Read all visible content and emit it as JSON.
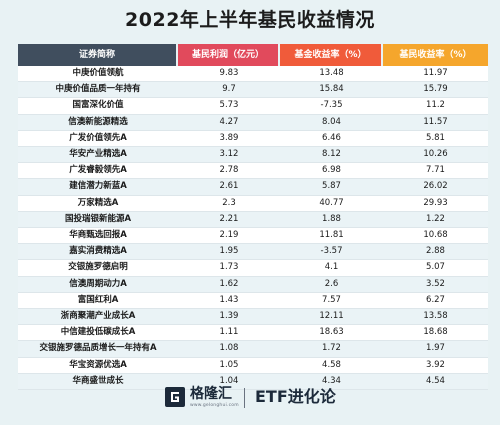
{
  "title": "2022年上半年基民收益情况",
  "columns": [
    "证券简称",
    "基民利润（亿元）",
    "基金收益率（%）",
    "基民收益率（%）"
  ],
  "rows": [
    {
      "name": "中庚价值领航",
      "profit": "9.83",
      "fund_return": "13.48",
      "investor_return": "11.97"
    },
    {
      "name": "中庚价值品质一年持有",
      "profit": "9.7",
      "fund_return": "15.84",
      "investor_return": "15.79"
    },
    {
      "name": "国富深化价值",
      "profit": "5.73",
      "fund_return": "-7.35",
      "investor_return": "11.2"
    },
    {
      "name": "信澳新能源精选",
      "profit": "4.27",
      "fund_return": "8.04",
      "investor_return": "11.57"
    },
    {
      "name": "广发价值领先A",
      "profit": "3.89",
      "fund_return": "6.46",
      "investor_return": "5.81"
    },
    {
      "name": "华安产业精选A",
      "profit": "3.12",
      "fund_return": "8.12",
      "investor_return": "10.26"
    },
    {
      "name": "广发睿毅领先A",
      "profit": "2.78",
      "fund_return": "6.98",
      "investor_return": "7.71"
    },
    {
      "name": "建信潜力新蓝A",
      "profit": "2.61",
      "fund_return": "5.87",
      "investor_return": "26.02"
    },
    {
      "name": "万家精选A",
      "profit": "2.3",
      "fund_return": "40.77",
      "investor_return": "29.93"
    },
    {
      "name": "国投瑞银新能源A",
      "profit": "2.21",
      "fund_return": "1.88",
      "investor_return": "1.22"
    },
    {
      "name": "华商甄选回报A",
      "profit": "2.19",
      "fund_return": "11.81",
      "investor_return": "10.68"
    },
    {
      "name": "嘉实消费精选A",
      "profit": "1.95",
      "fund_return": "-3.57",
      "investor_return": "2.88"
    },
    {
      "name": "交银施罗德启明",
      "profit": "1.73",
      "fund_return": "4.1",
      "investor_return": "5.07"
    },
    {
      "name": "信澳周期动力A",
      "profit": "1.62",
      "fund_return": "2.6",
      "investor_return": "3.52"
    },
    {
      "name": "富国红利A",
      "profit": "1.43",
      "fund_return": "7.57",
      "investor_return": "6.27"
    },
    {
      "name": "浙商聚潮产业成长A",
      "profit": "1.39",
      "fund_return": "12.11",
      "investor_return": "13.58"
    },
    {
      "name": "中信建投低碳成长A",
      "profit": "1.11",
      "fund_return": "18.63",
      "investor_return": "18.68"
    },
    {
      "name": "交银施罗德品质增长一年持有A",
      "profit": "1.08",
      "fund_return": "1.72",
      "investor_return": "1.97"
    },
    {
      "name": "华宝资源优选A",
      "profit": "1.05",
      "fund_return": "4.58",
      "investor_return": "3.92"
    },
    {
      "name": "华商盛世成长",
      "profit": "1.04",
      "fund_return": "4.34",
      "investor_return": "4.54"
    }
  ],
  "footer": {
    "logo_icon": "gelonghui-logo-icon",
    "brand_name": "格隆汇",
    "brand_url": "www.gelonghui.com",
    "column_name": "ETF进化论"
  },
  "colors": {
    "header_name": "#404e5e",
    "header_profit": "#e14a5c",
    "header_fund": "#f05b3a",
    "header_investor": "#f5a62c",
    "background": "#e8f2f4"
  }
}
